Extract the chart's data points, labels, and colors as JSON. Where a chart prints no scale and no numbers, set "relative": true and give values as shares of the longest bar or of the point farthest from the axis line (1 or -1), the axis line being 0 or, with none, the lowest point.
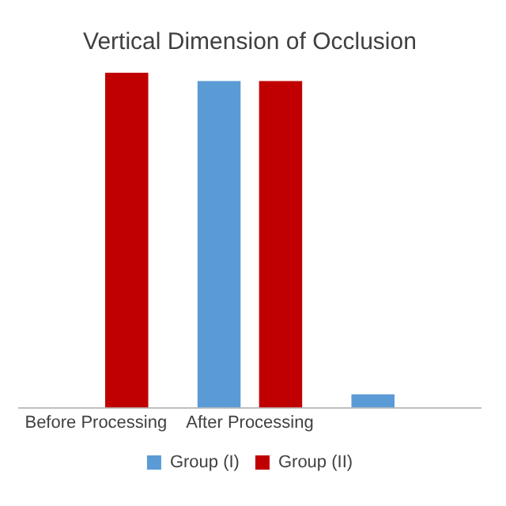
{
  "chart_data": {
    "type": "bar",
    "title": "Vertical Dimension of Occlusion",
    "relative": true,
    "categories": [
      "Before Processing",
      "After Processing",
      null
    ],
    "series": [
      {
        "name": "Group (I)",
        "color": "#5b9bd5",
        "values": [
          null,
          0.975,
          0.04
        ]
      },
      {
        "name": "Group (II)",
        "color": "#c00000",
        "values": [
          1,
          0.975,
          null
        ]
      }
    ],
    "legend": "bottom",
    "grid": false
  }
}
